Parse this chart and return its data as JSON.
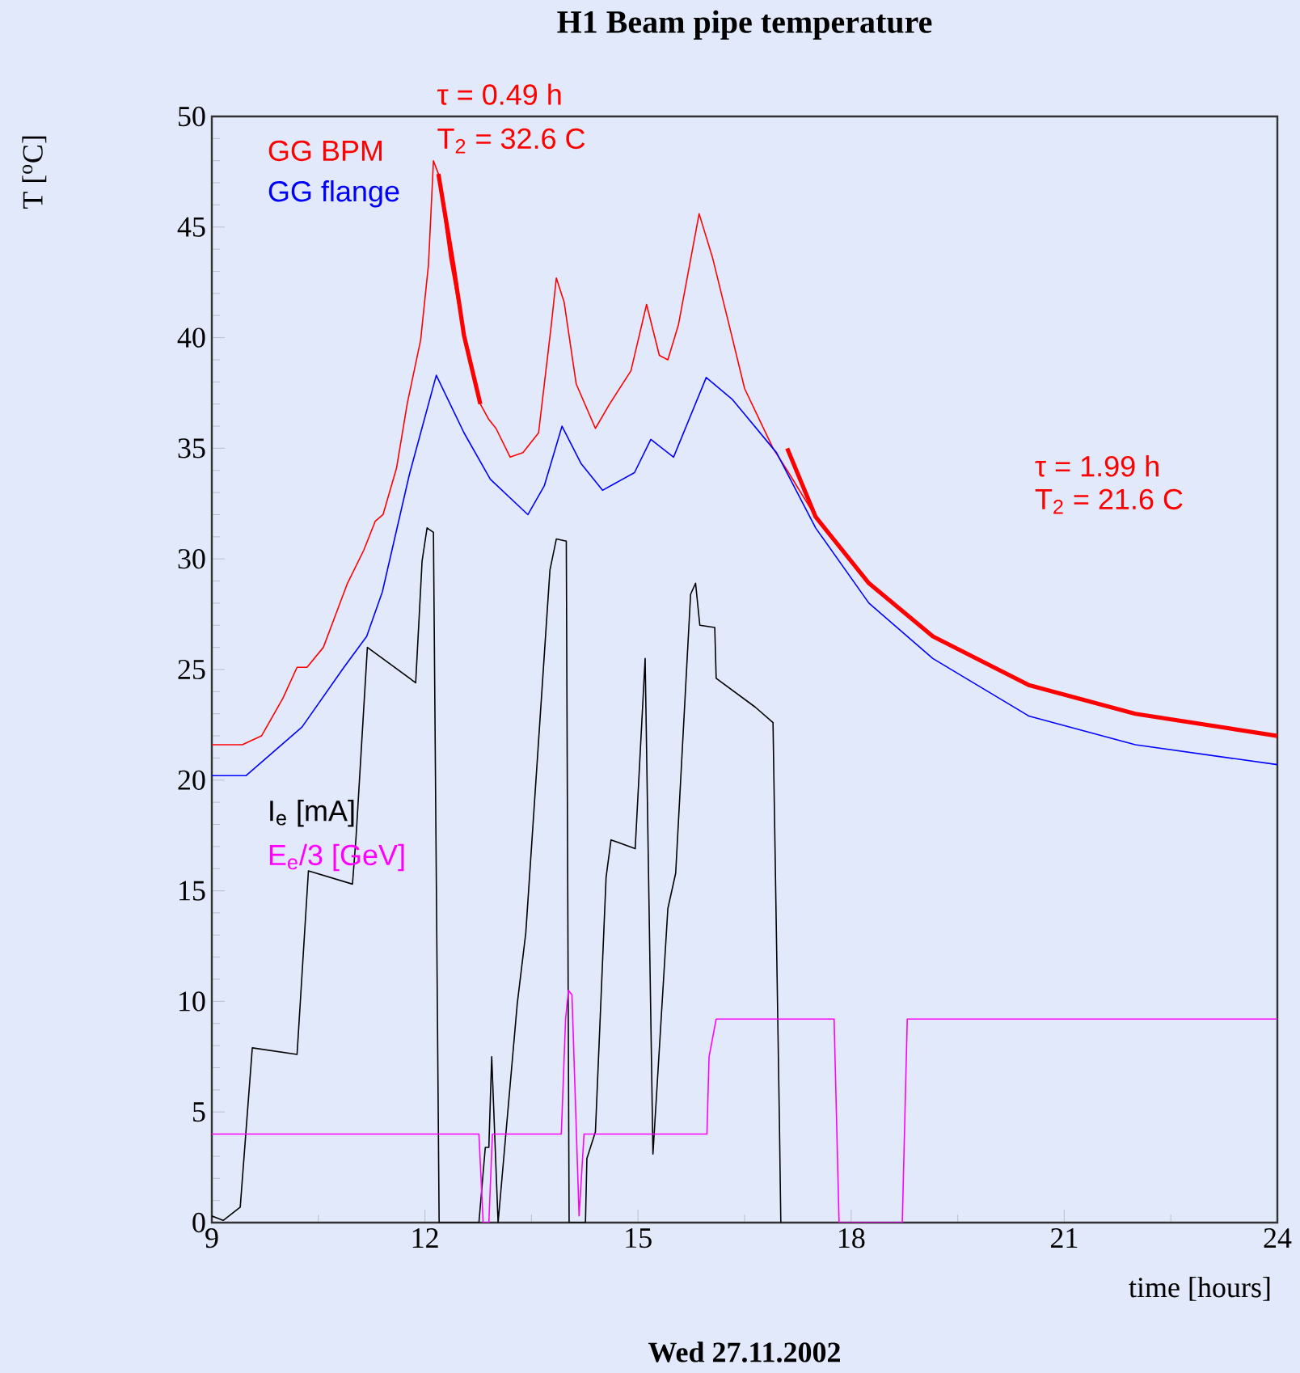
{
  "chart_data": {
    "type": "line",
    "title": "H1 Beam pipe temperature",
    "xlabel": "time [hours]",
    "ylabel": "T [$^{o}$C]",
    "xlim": [
      9,
      24
    ],
    "ylim": [
      0,
      50
    ],
    "xticks": [
      9,
      12,
      15,
      18,
      21,
      24
    ],
    "yticks": [
      0,
      5,
      10,
      15,
      20,
      25,
      30,
      35,
      40,
      45,
      50
    ],
    "legend": "top left",
    "annotations": [
      "τ = 0.49 h",
      "T$_{2}$ = 32.6 C",
      "τ = 1.99 h",
      "T$_{2}$ = 21.6 C",
      "Wed 27.11.2002"
    ],
    "series": [
      {
        "name": "GG BPM",
        "color": "#ff0000",
        "x": [
          9.0,
          9.43,
          9.7,
          10.0,
          10.2,
          10.34,
          10.57,
          10.91,
          11.14,
          11.3,
          11.41,
          11.6,
          11.75,
          11.94,
          12.05,
          12.12,
          12.19,
          12.35,
          12.55,
          12.78,
          12.9,
          13.0,
          13.2,
          13.38,
          13.6,
          13.78,
          13.85,
          13.96,
          14.13,
          14.4,
          14.6,
          14.9,
          15.12,
          15.3,
          15.42,
          15.57,
          15.86,
          16.05,
          16.28,
          16.5,
          16.9,
          17.1,
          17.5,
          18.25,
          19.15,
          20.5,
          22.0,
          24.0
        ],
        "values": [
          21.6,
          21.6,
          22.0,
          23.7,
          25.1,
          25.1,
          26.0,
          28.9,
          30.4,
          31.7,
          32.0,
          34.1,
          37.0,
          39.9,
          43.3,
          48.0,
          47.4,
          43.6,
          40.1,
          37.0,
          36.3,
          35.9,
          34.6,
          34.8,
          35.7,
          40.6,
          42.7,
          41.6,
          37.9,
          35.9,
          37.0,
          38.5,
          41.5,
          39.2,
          39.0,
          40.6,
          45.6,
          43.6,
          40.6,
          37.7,
          35.0,
          34.0,
          31.9,
          28.9,
          26.5,
          24.3,
          23.0,
          22.0
        ]
      },
      {
        "name": "GG flange",
        "color": "#0000ff",
        "x": [
          9.0,
          9.48,
          10.27,
          10.86,
          11.18,
          11.4,
          11.78,
          12.16,
          12.55,
          12.92,
          13.45,
          13.68,
          13.93,
          14.2,
          14.5,
          14.95,
          15.18,
          15.5,
          15.96,
          16.33,
          16.95,
          17.5,
          18.25,
          19.15,
          20.5,
          22.0,
          24.0
        ],
        "values": [
          20.2,
          20.2,
          22.4,
          25.1,
          26.5,
          28.5,
          33.8,
          38.3,
          35.7,
          33.6,
          32.0,
          33.3,
          36.0,
          34.3,
          33.1,
          33.9,
          35.4,
          34.6,
          38.2,
          37.2,
          34.8,
          31.4,
          28.0,
          25.5,
          22.9,
          21.6,
          20.7
        ]
      },
      {
        "name": "I$_{e}$ [mA]",
        "color": "#000000",
        "x": [
          9.0,
          9.16,
          9.4,
          9.57,
          10.2,
          10.36,
          10.98,
          11.03,
          11.19,
          11.87,
          11.96,
          12.03,
          12.12,
          12.2,
          12.76,
          12.85,
          12.9,
          12.94,
          13.03,
          13.3,
          13.42,
          13.76,
          13.85,
          13.99,
          14.03,
          14.26,
          14.28,
          14.4,
          14.55,
          14.62,
          14.96,
          15.1,
          15.21,
          15.42,
          15.53,
          15.74,
          15.81,
          15.87,
          16.08,
          16.1,
          16.65,
          16.9,
          16.99,
          17.01
        ],
        "values": [
          0.3,
          0.1,
          0.7,
          7.9,
          7.6,
          15.9,
          15.3,
          17.4,
          26.0,
          24.4,
          29.9,
          31.4,
          31.2,
          0,
          0,
          3.4,
          3.4,
          7.5,
          0,
          9.9,
          13.1,
          29.5,
          30.9,
          30.8,
          0,
          0,
          2.9,
          4.1,
          15.6,
          17.3,
          16.9,
          25.5,
          3.1,
          14.2,
          15.8,
          28.4,
          28.9,
          27.0,
          26.9,
          24.6,
          23.3,
          22.6,
          4.6,
          0
        ]
      },
      {
        "name": "E$_{e}$/3 [GeV]",
        "color": "#ff00ff",
        "x": [
          9.0,
          12.76,
          12.82,
          12.9,
          12.95,
          13.92,
          13.98,
          14.02,
          14.07,
          14.17,
          14.24,
          15.97,
          16.0,
          16.1,
          17.76,
          17.83,
          18.72,
          18.79,
          24.0
        ],
        "values": [
          4.0,
          4.0,
          0,
          0,
          4.0,
          4.0,
          9.2,
          10.5,
          10.3,
          0.3,
          4.0,
          4.0,
          7.5,
          9.2,
          9.2,
          0,
          0,
          9.2,
          9.2
        ]
      },
      {
        "type": "line",
        "color": "#ff0000",
        "x": [
          12.19,
          12.4,
          12.55,
          12.78
        ],
        "values": [
          47.4,
          43.3,
          40.1,
          37.0
        ]
      },
      {
        "type": "line",
        "color": "#ff0000",
        "x": [
          17.1,
          17.5,
          18.25,
          19.15,
          20.5,
          22.0,
          24.0
        ],
        "values": [
          35.0,
          31.9,
          28.9,
          26.5,
          24.3,
          23.0,
          22.0
        ]
      }
    ]
  }
}
